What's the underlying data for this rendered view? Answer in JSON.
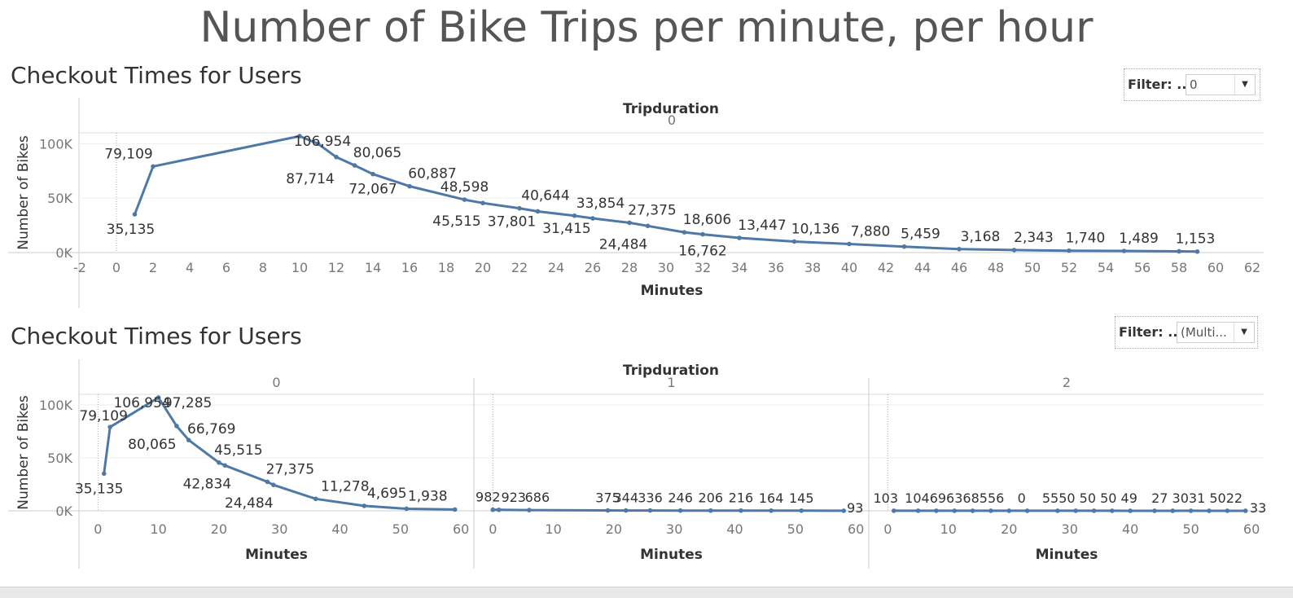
{
  "title": "Number of Bike Trips per minute, per hour",
  "section_titles": [
    "Checkout Times for Users",
    "Checkout Times for Users"
  ],
  "filters": [
    {
      "label": "Filter: ..",
      "value": "0"
    },
    {
      "label": "Filter: ..",
      "value": "(Multi..."
    }
  ],
  "colors": {
    "line": "#4e79a7",
    "title": "#555555",
    "grid": "#eeeeee"
  },
  "icons": {
    "dropdown": "chevron-down-icon"
  },
  "chart_data": [
    {
      "type": "line",
      "column_header": "Tripduration",
      "panels": [
        {
          "label": "0",
          "x": [
            1,
            2,
            10,
            11,
            12,
            13,
            14,
            16,
            19,
            20,
            22,
            23,
            25,
            26,
            28,
            29,
            31,
            32,
            34,
            37,
            40,
            43,
            46,
            49,
            52,
            55,
            58,
            59
          ],
          "y": [
            35135,
            79109,
            106954,
            100000,
            87714,
            80065,
            72067,
            60887,
            48598,
            45515,
            40644,
            37801,
            33854,
            31415,
            27375,
            24484,
            18606,
            16762,
            13447,
            10136,
            7880,
            5459,
            3168,
            2343,
            1740,
            1489,
            1153,
            900
          ],
          "point_labels": [
            "35,135",
            "79,109",
            "106,954",
            "",
            "87,714",
            "80,065",
            "72,067",
            "60,887",
            "48,598",
            "45,515",
            "40,644",
            "37,801",
            "33,854",
            "31,415",
            "27,375",
            "24,484",
            "18,606",
            "16,762",
            "13,447",
            "10,136",
            "7,880",
            "5,459",
            "3,168",
            "2,343",
            "1,740",
            "1,489",
            "1,153",
            ""
          ]
        }
      ],
      "xlabel": "Minutes",
      "ylabel": "Number of Bikes",
      "xlim": [
        -2,
        62
      ],
      "xticks": [
        -2,
        0,
        2,
        4,
        6,
        8,
        10,
        12,
        14,
        16,
        18,
        20,
        22,
        24,
        26,
        28,
        30,
        32,
        34,
        36,
        38,
        40,
        42,
        44,
        46,
        48,
        50,
        52,
        54,
        56,
        58,
        60,
        62
      ],
      "ylim": [
        0,
        110000
      ],
      "yticks": [
        {
          "value": 0,
          "label": "0K"
        },
        {
          "value": 50000,
          "label": "50K"
        },
        {
          "value": 100000,
          "label": "100K"
        }
      ],
      "grid": true
    },
    {
      "type": "line",
      "column_header": "Tripduration",
      "panels": [
        {
          "label": "0",
          "x": [
            1,
            2,
            10,
            13,
            15,
            20,
            21,
            28,
            29,
            36,
            44,
            51,
            59
          ],
          "y": [
            35135,
            79109,
            106954,
            80065,
            66769,
            45515,
            42834,
            27375,
            24484,
            11278,
            4695,
            1938,
            1200
          ],
          "point_labels": [
            "35,135",
            "79,109",
            "106,954",
            "80,065",
            "66,769",
            "45,515",
            "42,834",
            "27,375",
            "24,484",
            "11,278",
            "4,695",
            "1,938",
            ""
          ],
          "extra_labels": [
            "97,285"
          ]
        },
        {
          "label": "1",
          "x": [
            0,
            1,
            6,
            19,
            22,
            26,
            31,
            36,
            41,
            46,
            51,
            58
          ],
          "y": [
            982,
            923,
            686,
            375,
            344,
            336,
            246,
            206,
            216,
            164,
            145,
            93
          ],
          "point_labels": [
            "982",
            "923",
            "686",
            "375",
            "344",
            "336",
            "246",
            "206",
            "216",
            "164",
            "145",
            "93"
          ]
        },
        {
          "label": "2",
          "x": [
            1,
            5,
            8,
            11,
            14,
            17,
            20,
            23,
            28,
            31,
            34,
            37,
            40,
            44,
            47,
            50,
            53,
            56,
            59
          ],
          "y": [
            103,
            104,
            69,
            63,
            68,
            55,
            60,
            55,
            50,
            50,
            50,
            49,
            27,
            30,
            31,
            50,
            22,
            33,
            30
          ],
          "point_labels": [
            "103",
            "104",
            "69",
            "63",
            "68",
            "55",
            "60",
            "55",
            "50",
            "50",
            "50",
            "49",
            "27",
            "30",
            "31",
            "50",
            "22",
            "33",
            ""
          ],
          "label_text": [
            "103",
            "104696368556",
            "0",
            "5550 50 50 49",
            "27 3031 5022",
            "33"
          ]
        }
      ],
      "xlabel": "Minutes",
      "ylabel": "Number of Bikes",
      "xlim": [
        -3,
        62
      ],
      "xticks": [
        0,
        10,
        20,
        30,
        40,
        50,
        60
      ],
      "ylim": [
        0,
        110000
      ],
      "yticks": [
        {
          "value": 0,
          "label": "0K"
        },
        {
          "value": 50000,
          "label": "50K"
        },
        {
          "value": 100000,
          "label": "100K"
        }
      ],
      "grid": true
    }
  ]
}
